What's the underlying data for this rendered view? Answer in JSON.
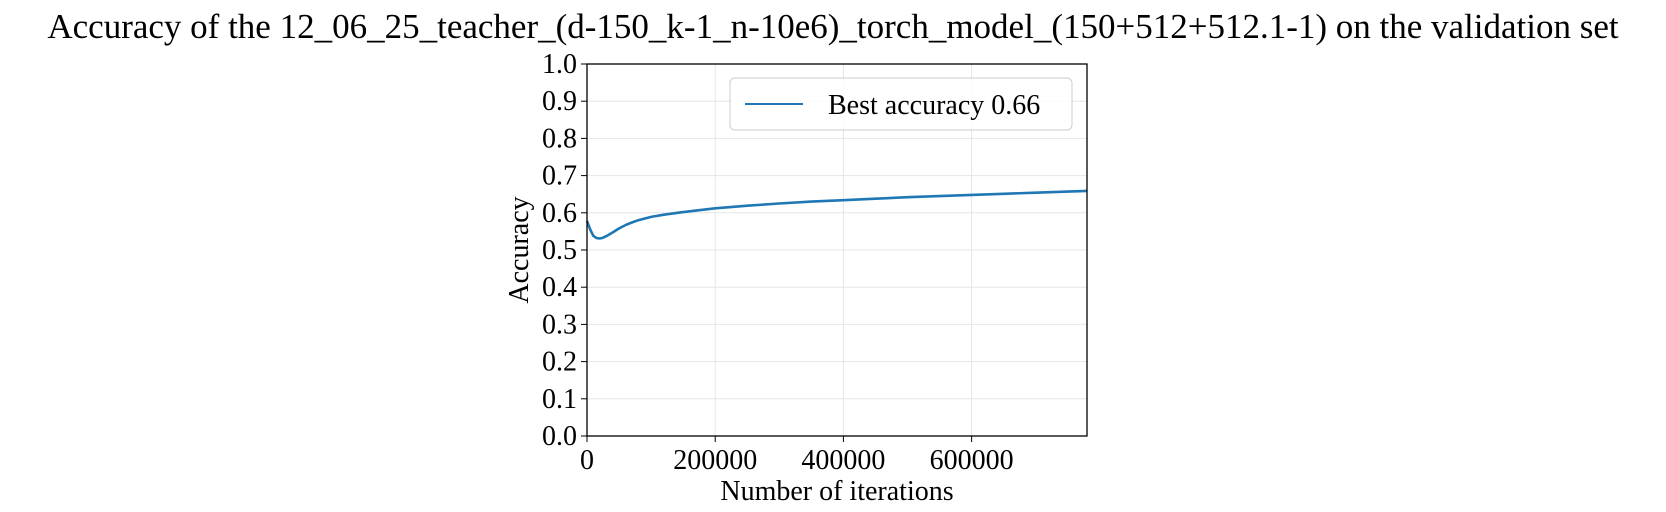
{
  "chart_data": {
    "type": "line",
    "title": "Accuracy of the 12_06_25_teacher_(d-150_k-1_n-10e6)_torch_model_(150+512+512.1-1) on the validation set",
    "xlabel": "Number of iterations",
    "ylabel": "Accuracy",
    "xlim": [
      0,
      780000
    ],
    "ylim": [
      0.0,
      1.0
    ],
    "xticks": [
      0,
      200000,
      400000,
      600000
    ],
    "xtick_labels": [
      "0",
      "200000",
      "400000",
      "600000"
    ],
    "yticks": [
      0.0,
      0.1,
      0.2,
      0.3,
      0.4,
      0.5,
      0.6,
      0.7,
      0.8,
      0.9,
      1.0
    ],
    "ytick_labels": [
      "0.0",
      "0.1",
      "0.2",
      "0.3",
      "0.4",
      "0.5",
      "0.6",
      "0.7",
      "0.8",
      "0.9",
      "1.0"
    ],
    "grid": true,
    "legend_position": "top-right",
    "series": [
      {
        "name": "Best accuracy 0.66",
        "color": "#1f77b4",
        "x": [
          0,
          5000,
          10000,
          15000,
          20000,
          25000,
          30000,
          40000,
          50000,
          60000,
          70000,
          80000,
          100000,
          120000,
          150000,
          200000,
          250000,
          300000,
          350000,
          400000,
          450000,
          500000,
          550000,
          600000,
          650000,
          700000,
          750000,
          780000
        ],
        "y": [
          0.578,
          0.555,
          0.538,
          0.532,
          0.531,
          0.533,
          0.537,
          0.547,
          0.558,
          0.567,
          0.574,
          0.58,
          0.589,
          0.595,
          0.602,
          0.612,
          0.619,
          0.625,
          0.63,
          0.634,
          0.638,
          0.642,
          0.645,
          0.648,
          0.651,
          0.654,
          0.657,
          0.659
        ]
      }
    ]
  }
}
